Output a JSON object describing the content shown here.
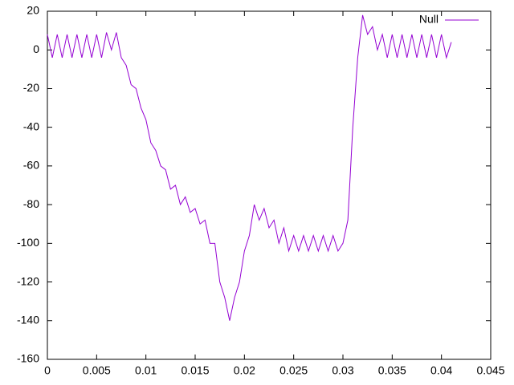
{
  "chart_data": {
    "type": "line",
    "x": [
      0,
      0.0005,
      0.001,
      0.0015,
      0.002,
      0.0025,
      0.003,
      0.0035,
      0.004,
      0.0045,
      0.005,
      0.0055,
      0.006,
      0.0065,
      0.007,
      0.0075,
      0.008,
      0.0085,
      0.009,
      0.0095,
      0.01,
      0.0105,
      0.011,
      0.0115,
      0.012,
      0.0125,
      0.013,
      0.0135,
      0.014,
      0.0145,
      0.015,
      0.0155,
      0.016,
      0.0165,
      0.017,
      0.0175,
      0.018,
      0.0185,
      0.019,
      0.0195,
      0.02,
      0.0205,
      0.021,
      0.0215,
      0.022,
      0.0225,
      0.023,
      0.0235,
      0.024,
      0.0245,
      0.025,
      0.0255,
      0.026,
      0.0265,
      0.027,
      0.0275,
      0.028,
      0.0285,
      0.029,
      0.0295,
      0.03,
      0.0305,
      0.031,
      0.0315,
      0.032,
      0.0325,
      0.033,
      0.0335,
      0.034,
      0.0345,
      0.035,
      0.0355,
      0.036,
      0.0365,
      0.037,
      0.0375,
      0.038,
      0.0385,
      0.039,
      0.0395,
      0.04,
      0.0405,
      0.041
    ],
    "series": [
      {
        "name": "Null",
        "color": "#9400d3",
        "values": [
          8,
          -4,
          8,
          -4,
          8,
          -4,
          8,
          -4,
          8,
          -4,
          8,
          -4,
          9,
          0,
          9,
          -4,
          -8,
          -18,
          -20,
          -30,
          -36,
          -48,
          -52,
          -60,
          -62,
          -72,
          -70,
          -80,
          -76,
          -84,
          -82,
          -90,
          -88,
          -100,
          -100,
          -120,
          -128,
          -140,
          -128,
          -120,
          -104,
          -96,
          -80,
          -88,
          -82,
          -92,
          -88,
          -100,
          -92,
          -104,
          -96,
          -104,
          -96,
          -104,
          -96,
          -104,
          -96,
          -104,
          -96,
          -104,
          -100,
          -88,
          -40,
          -4,
          18,
          8,
          12,
          0,
          8,
          -4,
          8,
          -4,
          8,
          -4,
          8,
          -4,
          8,
          -4,
          8,
          -4,
          8,
          -4,
          4
        ]
      }
    ],
    "xlim": [
      0,
      0.045
    ],
    "ylim": [
      -160,
      20
    ],
    "xticks": [
      0,
      0.005,
      0.01,
      0.015,
      0.02,
      0.025,
      0.03,
      0.035,
      0.04,
      0.045
    ],
    "yticks": [
      -160,
      -140,
      -120,
      -100,
      -80,
      -60,
      -40,
      -20,
      0,
      20
    ],
    "legend": "top-right"
  }
}
